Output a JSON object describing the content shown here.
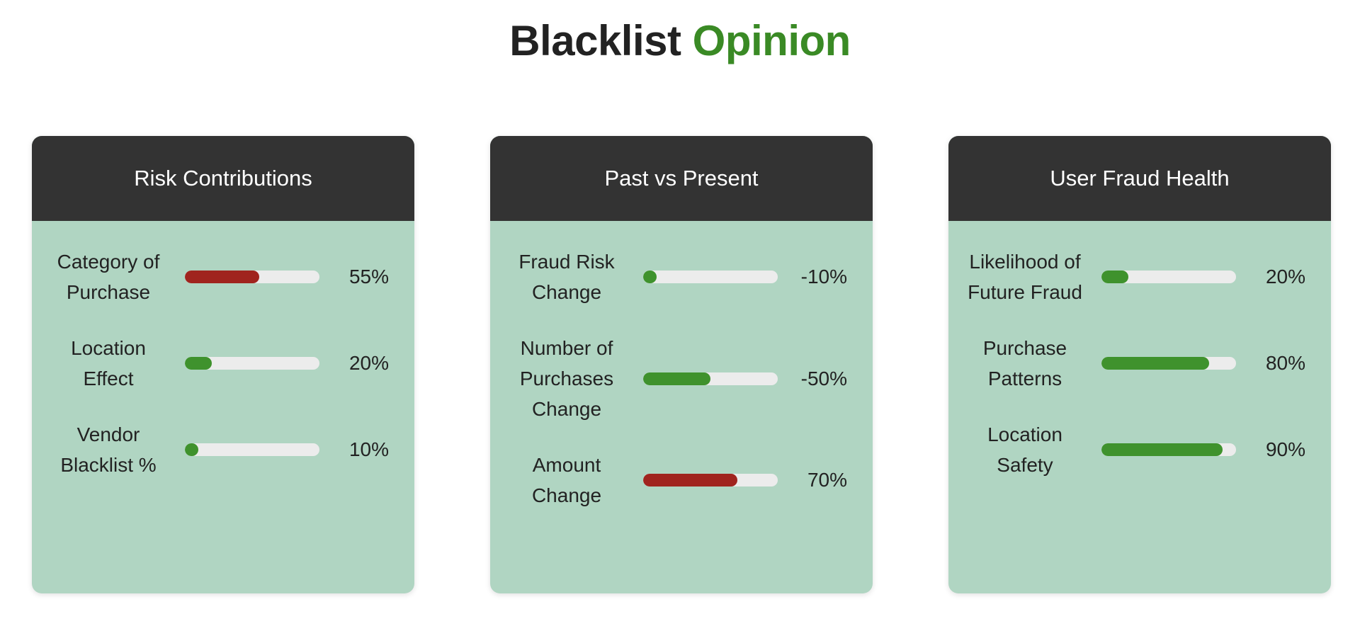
{
  "title": {
    "main": "Blacklist",
    "accent": "Opinion"
  },
  "colors": {
    "good": "#3f922d",
    "bad": "#a0241e",
    "track": "#ececec",
    "header": "#333333",
    "card": "#b0d5c2"
  },
  "cards": [
    {
      "title": "Risk Contributions",
      "metrics": [
        {
          "label": "Category of Purchase",
          "value": "55%",
          "fill": 0.55,
          "status": "bad"
        },
        {
          "label": "Location Effect",
          "value": "20%",
          "fill": 0.2,
          "status": "good"
        },
        {
          "label": "Vendor Blacklist %",
          "value": "10%",
          "fill": 0.1,
          "status": "good"
        }
      ]
    },
    {
      "title": "Past vs Present",
      "metrics": [
        {
          "label": "Fraud Risk Change",
          "value": "-10%",
          "fill": 0.1,
          "status": "good"
        },
        {
          "label": "Number of Purchases Change",
          "value": "-50%",
          "fill": 0.5,
          "status": "good"
        },
        {
          "label": "Amount Change",
          "value": "70%",
          "fill": 0.7,
          "status": "bad"
        }
      ]
    },
    {
      "title": "User Fraud Health",
      "metrics": [
        {
          "label": "Likelihood of Future Fraud",
          "value": "20%",
          "fill": 0.2,
          "status": "good"
        },
        {
          "label": "Purchase Patterns",
          "value": "80%",
          "fill": 0.8,
          "status": "good"
        },
        {
          "label": "Location Safety",
          "value": "90%",
          "fill": 0.9,
          "status": "good"
        }
      ]
    }
  ]
}
